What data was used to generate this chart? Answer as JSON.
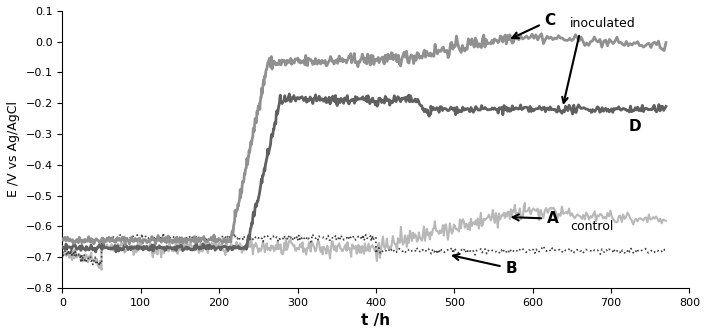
{
  "title": "",
  "xlabel": "t /h",
  "ylabel": "E /V vs Ag/AgCl",
  "xlim": [
    0,
    800
  ],
  "ylim": [
    -0.8,
    0.1
  ],
  "xticks": [
    0,
    100,
    200,
    300,
    400,
    500,
    600,
    700,
    800
  ],
  "yticks": [
    -0.8,
    -0.7,
    -0.6,
    -0.5,
    -0.4,
    -0.3,
    -0.2,
    -0.1,
    0,
    0.1
  ],
  "color_C": "#909090",
  "color_D": "#606060",
  "color_A": "#b8b8b8",
  "color_B": "#404040",
  "figsize": [
    7.07,
    3.35
  ],
  "dpi": 100
}
